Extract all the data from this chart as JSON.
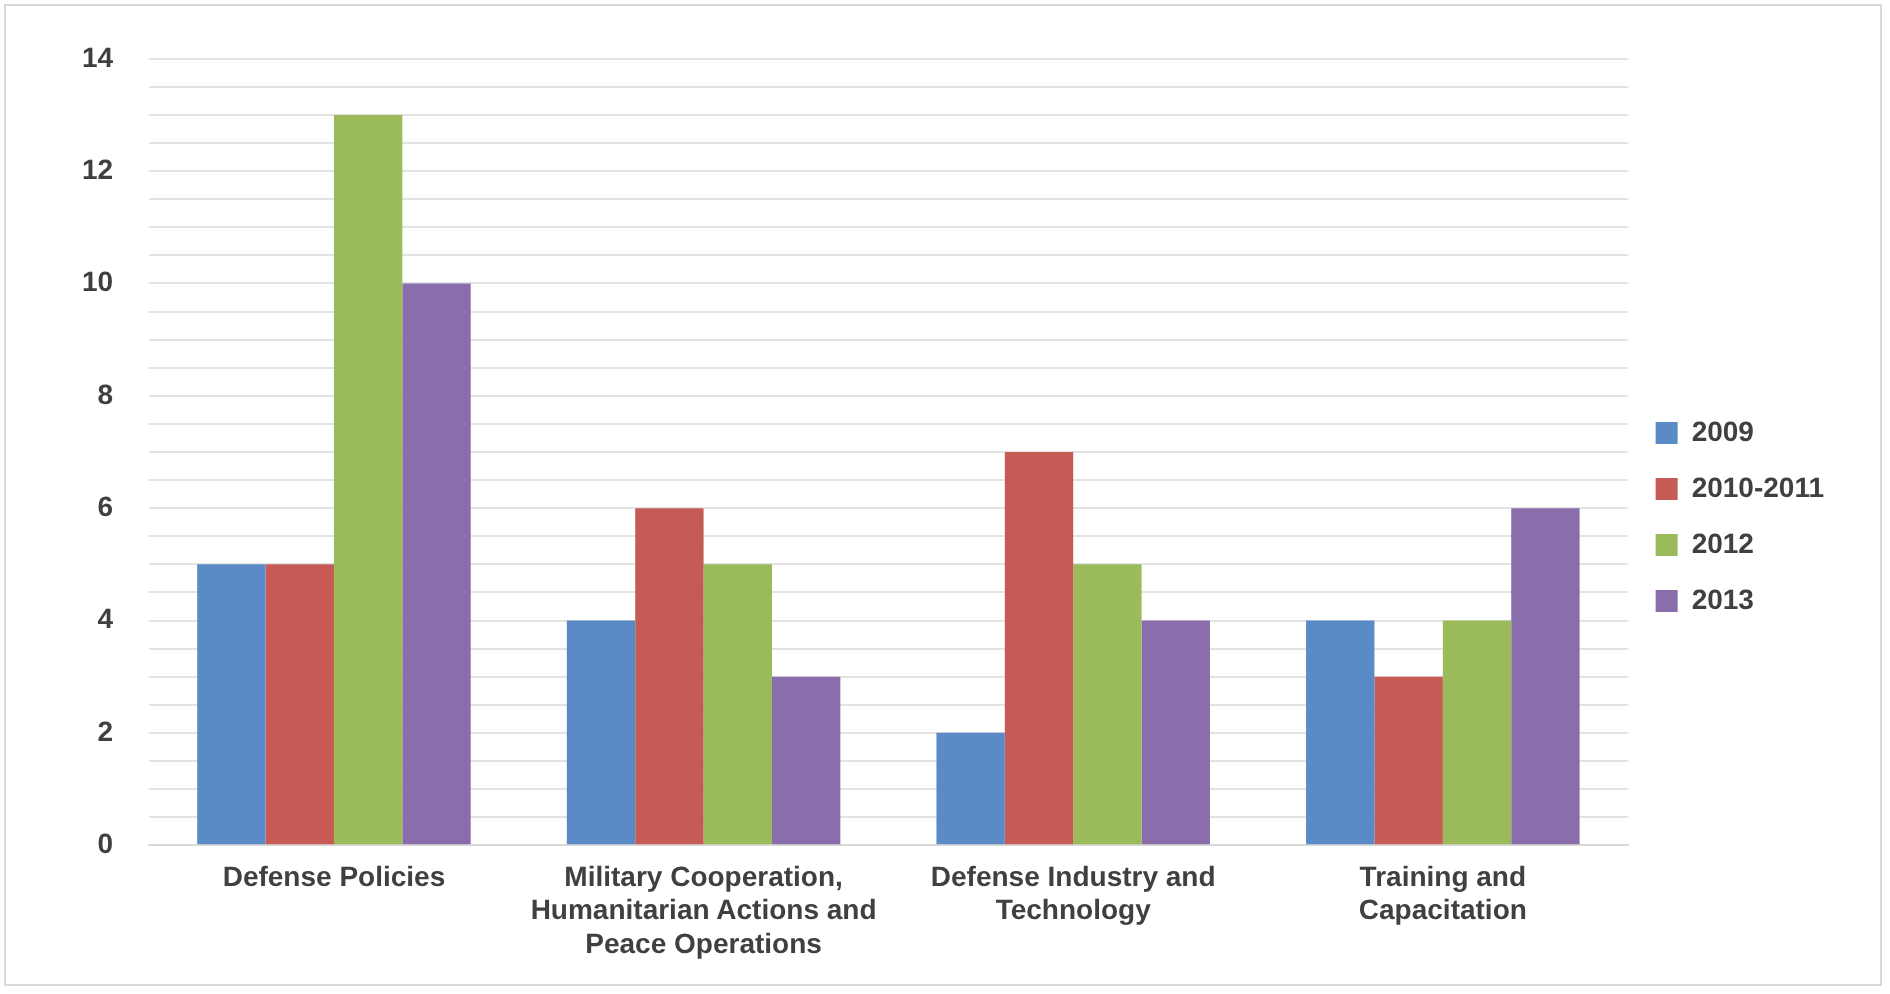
{
  "chart_data": {
    "type": "bar",
    "categories": [
      "Defense Policies",
      "Military Cooperation, Humanitarian Actions and Peace Operations",
      "Defense Industry and Technology",
      "Training and Capacitation"
    ],
    "series": [
      {
        "name": "2009",
        "color": "#5b8bc6",
        "values": [
          5,
          4,
          2,
          4
        ]
      },
      {
        "name": "2010-2011",
        "color": "#c65a55",
        "values": [
          5,
          6,
          7,
          3
        ]
      },
      {
        "name": "2012",
        "color": "#9bbb5b",
        "values": [
          13,
          5,
          5,
          4
        ]
      },
      {
        "name": "2013",
        "color": "#8a6eac",
        "values": [
          10,
          3,
          4,
          6
        ]
      }
    ],
    "ylim": [
      0,
      14
    ],
    "yticks": [
      0,
      {
        "value": 0.5,
        "label": null
      },
      {
        "value": 1,
        "label": null
      },
      {
        "value": 1.5,
        "label": null
      },
      2,
      {
        "value": 2.5,
        "label": null
      },
      {
        "value": 3,
        "label": null
      },
      {
        "value": 3.5,
        "label": null
      },
      4,
      {
        "value": 4.5,
        "label": null
      },
      {
        "value": 5,
        "label": null
      },
      {
        "value": 5.5,
        "label": null
      },
      6,
      {
        "value": 6.5,
        "label": null
      },
      {
        "value": 7,
        "label": null
      },
      {
        "value": 7.5,
        "label": null
      },
      8,
      {
        "value": 8.5,
        "label": null
      },
      {
        "value": 9,
        "label": null
      },
      {
        "value": 9.5,
        "label": null
      },
      10,
      {
        "value": 10.5,
        "label": null
      },
      {
        "value": 11,
        "label": null
      },
      {
        "value": 11.5,
        "label": null
      },
      12,
      {
        "value": 12.5,
        "label": null
      },
      {
        "value": 13,
        "label": null
      },
      {
        "value": 13.5,
        "label": null
      },
      14
    ],
    "grid": "y",
    "legend": "right"
  }
}
